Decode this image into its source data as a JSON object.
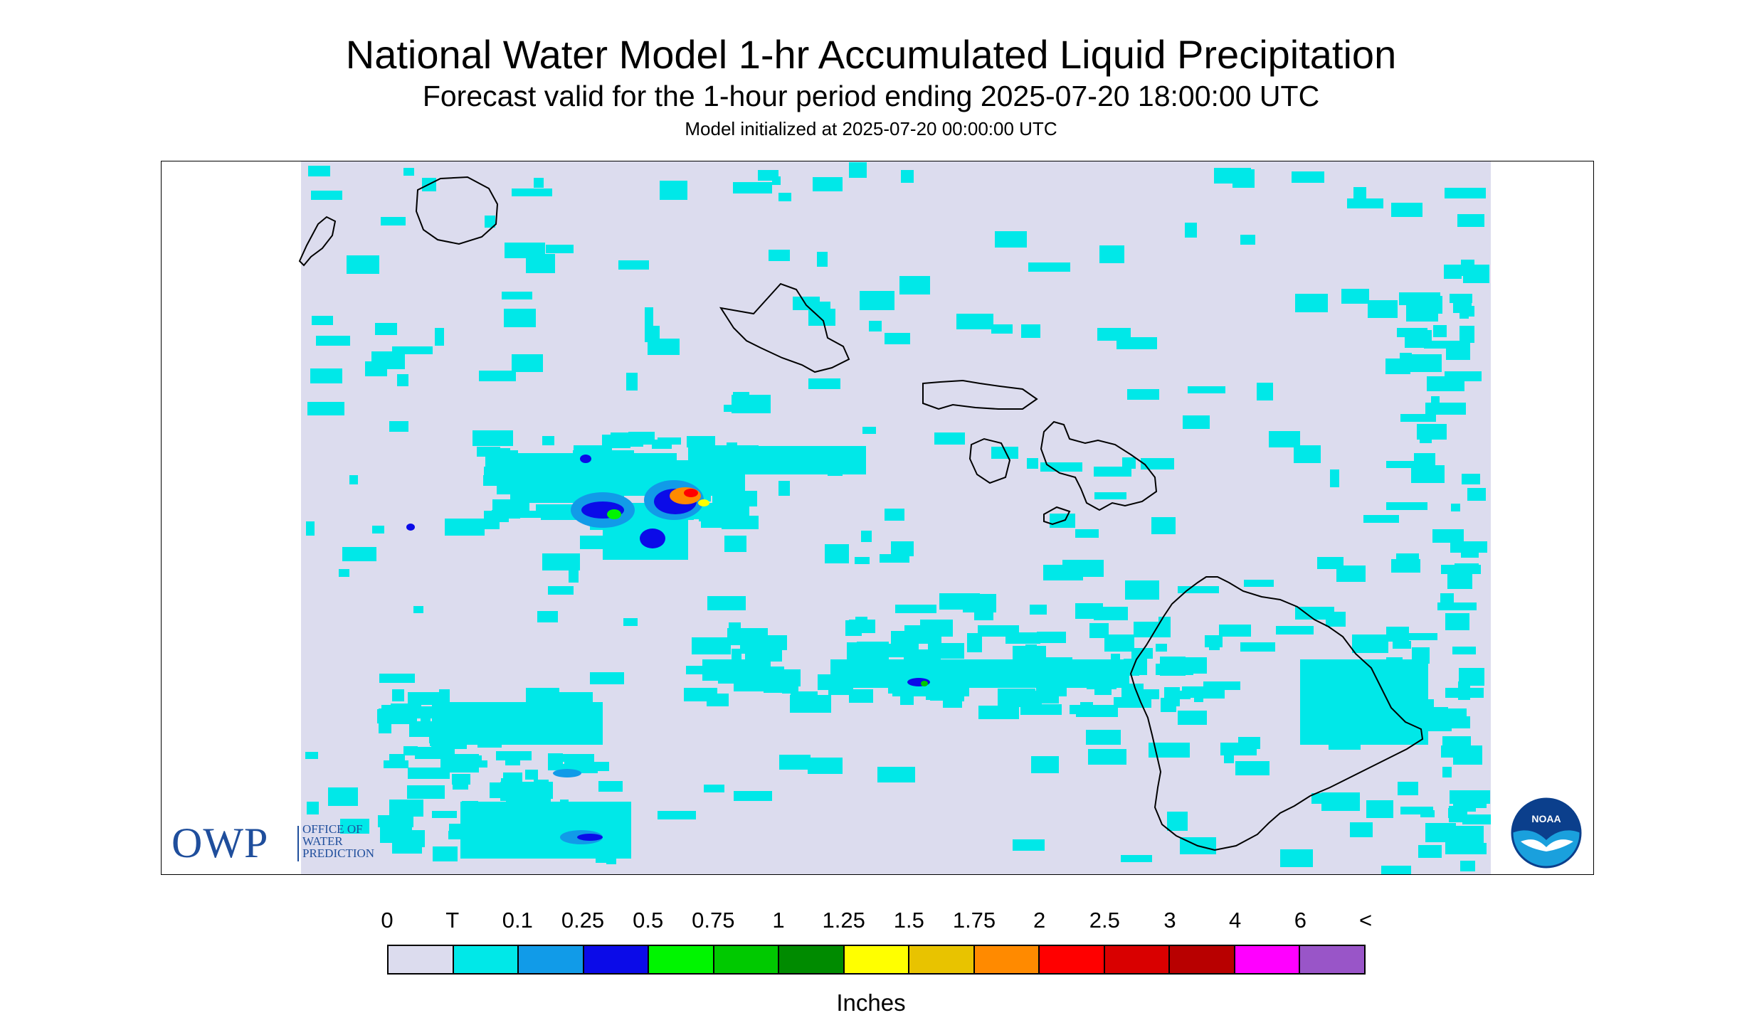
{
  "title": "National Water Model 1-hr Accumulated Liquid Precipitation",
  "subtitle": "Forecast valid for the 1-hour period ending 2025-07-20 18:00:00 UTC",
  "init_line": "Model initialized at 2025-07-20 00:00:00 UTC",
  "legend": {
    "labels": [
      "0",
      "T",
      "0.1",
      "0.25",
      "0.5",
      "0.75",
      "1",
      "1.25",
      "1.5",
      "1.75",
      "2",
      "2.5",
      "3",
      "4",
      "6",
      "<"
    ],
    "colors": [
      "#dcdcee",
      "#00e8e8",
      "#119be8",
      "#0b0be8",
      "#00f500",
      "#00c900",
      "#008b00",
      "#ffff00",
      "#e8c300",
      "#ff8a00",
      "#ff0000",
      "#d90000",
      "#b80000",
      "#ff00ff",
      "#9955c8"
    ],
    "units": "Inches"
  },
  "logos": {
    "owp_letters": "OWP",
    "owp_name": [
      "OFFICE OF",
      "WATER",
      "PREDICTION"
    ],
    "noaa": "NOAA"
  },
  "map": {
    "background_color": "#dcdcee",
    "coastline_color": "#000000"
  }
}
